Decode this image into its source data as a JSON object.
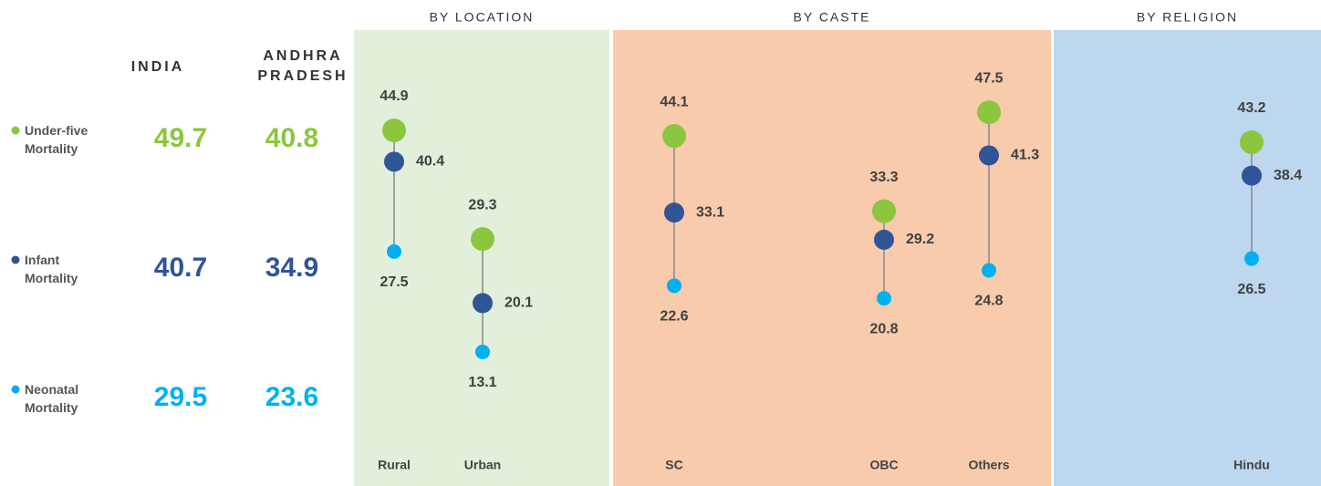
{
  "chart_data": {
    "type": "dot",
    "columns": [
      "INDIA",
      "ANDHRA PRADESH"
    ],
    "groups": [
      {
        "title": "BY LOCATION",
        "color": "#e2efda",
        "categories": [
          "Rural",
          "Urban"
        ]
      },
      {
        "title": "BY CASTE",
        "color": "#f8cbad",
        "categories": [
          "SC",
          "OBC",
          "Others"
        ]
      },
      {
        "title": "BY RELIGION",
        "color": "#bdd7ee",
        "categories": [
          "Hindu"
        ]
      }
    ],
    "series": [
      {
        "name": "Under-five Mortality",
        "color": "#8cc63f",
        "summary": [
          49.7,
          40.8
        ],
        "values": [
          44.9,
          29.3,
          44.1,
          33.3,
          47.5,
          43.2
        ]
      },
      {
        "name": "Infant Mortality",
        "color": "#2f5597",
        "summary": [
          40.7,
          34.9
        ],
        "values": [
          40.4,
          20.1,
          33.1,
          29.2,
          41.3,
          38.4
        ]
      },
      {
        "name": "Neonatal Mortality",
        "color": "#00b0f0",
        "summary": [
          29.5,
          23.6
        ],
        "values": [
          27.5,
          13.1,
          22.6,
          20.8,
          24.8,
          26.5
        ]
      }
    ]
  }
}
